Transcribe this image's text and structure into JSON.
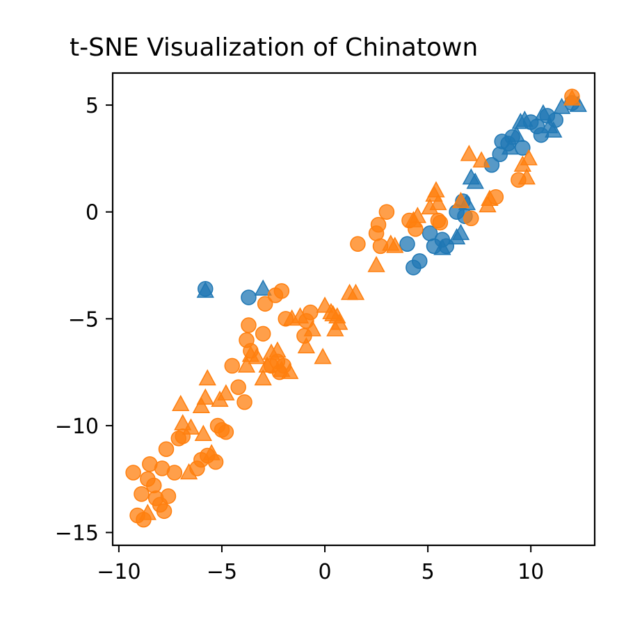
{
  "chart_data": {
    "type": "scatter",
    "title": "t-SNE Visualization of Chinatown",
    "xlabel": "",
    "ylabel": "",
    "xlim": [
      -10.3,
      13.1
    ],
    "ylim": [
      -15.6,
      6.5
    ],
    "xticks": [
      -10,
      -5,
      0,
      5,
      10
    ],
    "yticks": [
      -15,
      -10,
      -5,
      0,
      5
    ],
    "xtick_labels": [
      "−10",
      "−5",
      "0",
      "5",
      "10"
    ],
    "ytick_labels": [
      "−15",
      "−10",
      "−5",
      "0",
      "5"
    ],
    "grid": false,
    "legend": "none",
    "colors": {
      "blue": "#1f77b4",
      "orange": "#ff7f0e"
    },
    "series": [
      {
        "marker": "circle",
        "color": "blue",
        "points": [
          [
            -5.8,
            -3.6
          ],
          [
            -3.7,
            -4.0
          ],
          [
            4.0,
            -1.5
          ],
          [
            4.3,
            -2.6
          ],
          [
            4.6,
            -2.3
          ],
          [
            5.1,
            -1.0
          ],
          [
            5.3,
            -1.6
          ],
          [
            5.7,
            -1.3
          ],
          [
            5.9,
            -1.6
          ],
          [
            6.4,
            0.0
          ],
          [
            6.7,
            0.5
          ],
          [
            6.8,
            -0.2
          ],
          [
            8.1,
            2.2
          ],
          [
            8.5,
            2.7
          ],
          [
            8.6,
            3.3
          ],
          [
            8.9,
            3.2
          ],
          [
            9.1,
            3.5
          ],
          [
            9.6,
            3.0
          ],
          [
            10.0,
            4.2
          ],
          [
            10.3,
            4.0
          ],
          [
            10.5,
            3.6
          ],
          [
            10.8,
            4.5
          ],
          [
            11.2,
            4.3
          ],
          [
            12.0,
            5.1
          ]
        ]
      },
      {
        "marker": "triangle",
        "color": "blue",
        "points": [
          [
            -5.8,
            -3.7
          ],
          [
            -3.0,
            -3.6
          ],
          [
            5.7,
            -1.7
          ],
          [
            6.4,
            -1.2
          ],
          [
            6.6,
            -1.0
          ],
          [
            6.9,
            0.4
          ],
          [
            7.1,
            1.6
          ],
          [
            7.3,
            1.4
          ],
          [
            9.0,
            3.0
          ],
          [
            9.3,
            3.6
          ],
          [
            9.5,
            4.2
          ],
          [
            9.7,
            4.3
          ],
          [
            10.6,
            4.6
          ],
          [
            10.9,
            4.0
          ],
          [
            11.1,
            3.8
          ],
          [
            11.5,
            4.9
          ],
          [
            12.3,
            5.0
          ]
        ]
      },
      {
        "marker": "circle",
        "color": "orange",
        "points": [
          [
            -9.3,
            -12.2
          ],
          [
            -9.1,
            -14.2
          ],
          [
            -8.9,
            -13.2
          ],
          [
            -8.8,
            -14.4
          ],
          [
            -8.6,
            -12.5
          ],
          [
            -8.5,
            -11.8
          ],
          [
            -8.3,
            -12.8
          ],
          [
            -8.2,
            -13.4
          ],
          [
            -8.0,
            -13.7
          ],
          [
            -7.9,
            -12.0
          ],
          [
            -7.8,
            -14.0
          ],
          [
            -7.7,
            -11.1
          ],
          [
            -7.6,
            -13.3
          ],
          [
            -7.3,
            -12.2
          ],
          [
            -7.1,
            -10.6
          ],
          [
            -6.9,
            -10.5
          ],
          [
            -6.2,
            -12.0
          ],
          [
            -6.0,
            -11.6
          ],
          [
            -5.7,
            -11.4
          ],
          [
            -5.3,
            -11.7
          ],
          [
            -5.2,
            -10.0
          ],
          [
            -5.0,
            -10.2
          ],
          [
            -4.8,
            -10.3
          ],
          [
            -4.5,
            -7.2
          ],
          [
            -4.2,
            -8.2
          ],
          [
            -3.9,
            -8.9
          ],
          [
            -3.8,
            -6.0
          ],
          [
            -3.7,
            -5.3
          ],
          [
            -3.6,
            -6.5
          ],
          [
            -3.0,
            -5.7
          ],
          [
            -2.9,
            -4.3
          ],
          [
            -2.6,
            -7.2
          ],
          [
            -2.4,
            -3.9
          ],
          [
            -2.3,
            -7.0
          ],
          [
            -2.2,
            -7.5
          ],
          [
            -2.1,
            -3.7
          ],
          [
            -2.0,
            -7.2
          ],
          [
            -1.9,
            -5.0
          ],
          [
            -1.0,
            -5.8
          ],
          [
            -0.9,
            -5.1
          ],
          [
            -0.7,
            -4.7
          ],
          [
            1.6,
            -1.5
          ],
          [
            2.5,
            -1.0
          ],
          [
            2.6,
            -0.6
          ],
          [
            2.7,
            -1.6
          ],
          [
            3.0,
            0.0
          ],
          [
            4.1,
            -0.4
          ],
          [
            4.4,
            -0.8
          ],
          [
            5.5,
            -0.4
          ],
          [
            5.6,
            -0.5
          ],
          [
            7.1,
            -0.3
          ],
          [
            8.3,
            0.7
          ],
          [
            9.4,
            1.5
          ],
          [
            12.0,
            5.4
          ]
        ]
      },
      {
        "marker": "triangle",
        "color": "orange",
        "points": [
          [
            -8.6,
            -14.1
          ],
          [
            -7.0,
            -9.0
          ],
          [
            -6.9,
            -9.9
          ],
          [
            -6.6,
            -12.2
          ],
          [
            -6.5,
            -10.1
          ],
          [
            -6.0,
            -9.1
          ],
          [
            -5.9,
            -10.4
          ],
          [
            -5.8,
            -8.7
          ],
          [
            -5.7,
            -7.8
          ],
          [
            -5.5,
            -11.3
          ],
          [
            -5.1,
            -8.8
          ],
          [
            -4.8,
            -8.5
          ],
          [
            -3.8,
            -7.2
          ],
          [
            -3.6,
            -6.7
          ],
          [
            -3.3,
            -6.8
          ],
          [
            -3.0,
            -7.8
          ],
          [
            -2.8,
            -7.2
          ],
          [
            -2.6,
            -6.6
          ],
          [
            -2.3,
            -6.5
          ],
          [
            -2.1,
            -7.4
          ],
          [
            -1.7,
            -7.5
          ],
          [
            -1.6,
            -5.0
          ],
          [
            -1.2,
            -4.9
          ],
          [
            -0.9,
            -6.3
          ],
          [
            -0.6,
            -5.5
          ],
          [
            -0.1,
            -6.8
          ],
          [
            0.0,
            -4.4
          ],
          [
            0.3,
            -4.7
          ],
          [
            0.4,
            -4.8
          ],
          [
            0.5,
            -5.5
          ],
          [
            0.6,
            -4.9
          ],
          [
            0.7,
            -5.2
          ],
          [
            1.2,
            -3.8
          ],
          [
            1.5,
            -3.8
          ],
          [
            2.5,
            -2.5
          ],
          [
            3.2,
            -1.5
          ],
          [
            3.4,
            -1.6
          ],
          [
            4.3,
            -0.4
          ],
          [
            4.5,
            -0.2
          ],
          [
            5.1,
            0.2
          ],
          [
            5.3,
            0.8
          ],
          [
            5.4,
            1.0
          ],
          [
            5.5,
            0.4
          ],
          [
            6.6,
            0.5
          ],
          [
            7.0,
            2.7
          ],
          [
            7.6,
            2.4
          ],
          [
            7.9,
            0.3
          ],
          [
            8.0,
            0.6
          ],
          [
            9.6,
            2.2
          ],
          [
            9.8,
            1.6
          ],
          [
            9.9,
            2.5
          ],
          [
            12.0,
            5.3
          ]
        ]
      }
    ]
  }
}
